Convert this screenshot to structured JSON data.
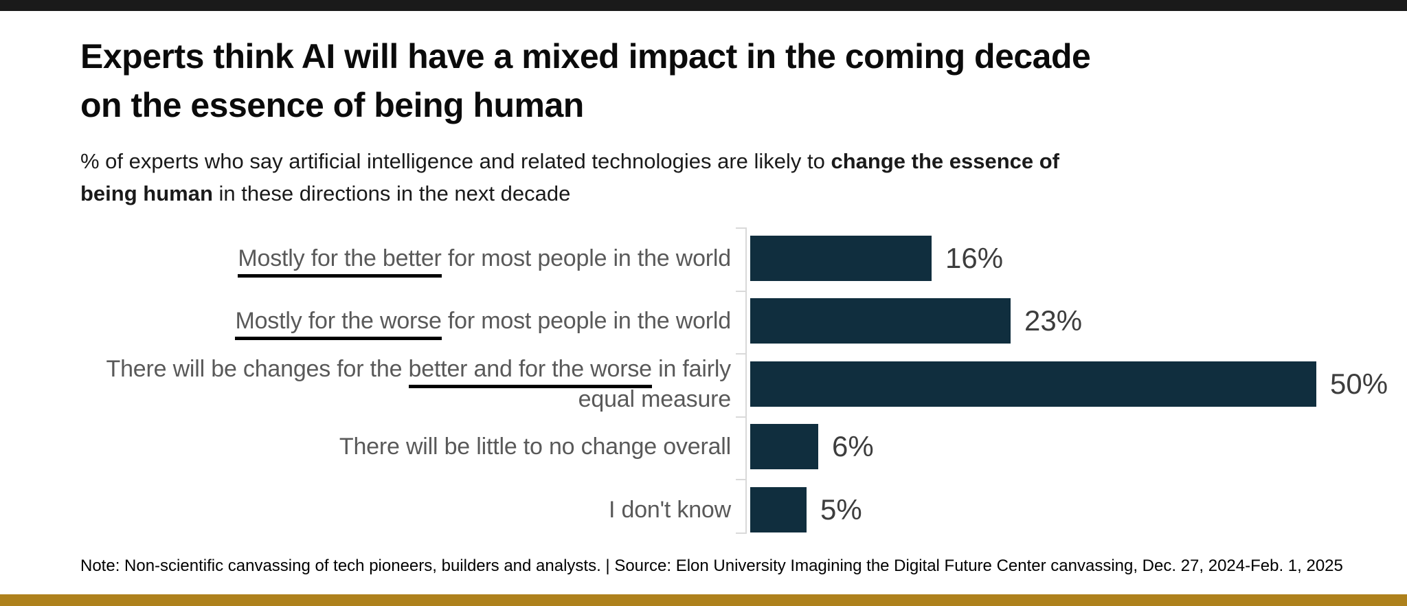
{
  "header": {
    "title_line1": "Experts think AI will have a mixed impact in the coming decade",
    "title_line2": "on the essence of being human",
    "subtitle": {
      "line1_pre": "% of experts who say artificial intelligence and related technologies are likely to ",
      "line1_bold": "change the essence of",
      "line2_bold": "being human",
      "line2_post": " in these directions in the next decade"
    }
  },
  "rows": [
    {
      "underlined": "Mostly for the better",
      "post": " for most people in the world",
      "value_label": "16%"
    },
    {
      "underlined": "Mostly for the worse",
      "post": " for most people in the world",
      "value_label": "23%"
    },
    {
      "pre": "There will be changes for the ",
      "underlined": "better and for the worse",
      "post": " in fairly",
      "line2": "equal measure",
      "value_label": "50%"
    },
    {
      "label": "There will be little to no change overall",
      "value_label": "6%"
    },
    {
      "label": "I don't know",
      "value_label": "5%"
    }
  ],
  "footer": {
    "note_text": "Note: Non-scientific canvassing of tech pioneers, builders and analysts.",
    "separator": "|",
    "source_text": "Source: Elon University Imagining the Digital Future Center canvassing,  Dec. 27, 2024-Feb. 1, 2025"
  },
  "colors": {
    "bar": "#102e3e",
    "top_bar": "#1a1a1a",
    "bottom_gold_bar": "#ae811c",
    "label_gray": "#595959",
    "value_gray": "#3d3d3d",
    "axis_gray": "#d9d9d9",
    "underline_black": "#000000"
  },
  "chart_data": {
    "type": "bar",
    "orientation": "horizontal",
    "title": "Experts think AI will have a mixed impact in the coming decade on the essence of being human",
    "subtitle": "% of experts who say artificial intelligence and related technologies are likely to change the essence of being human in these directions in the next decade",
    "categories": [
      "Mostly for the better for most people in the world",
      "Mostly for the worse for most people in the world",
      "There will be changes for the better and for the worse in fairly equal measure",
      "There will be little to no change overall",
      "I don't know"
    ],
    "values": [
      16,
      23,
      50,
      6,
      5
    ],
    "value_labels": [
      "16%",
      "23%",
      "50%",
      "6%",
      "5%"
    ],
    "xlabel": "",
    "ylabel": "",
    "xlim": [
      0,
      55
    ],
    "grid": false,
    "legend": false,
    "bar_color": "#102e3e",
    "data_label_position": "outside-end"
  }
}
